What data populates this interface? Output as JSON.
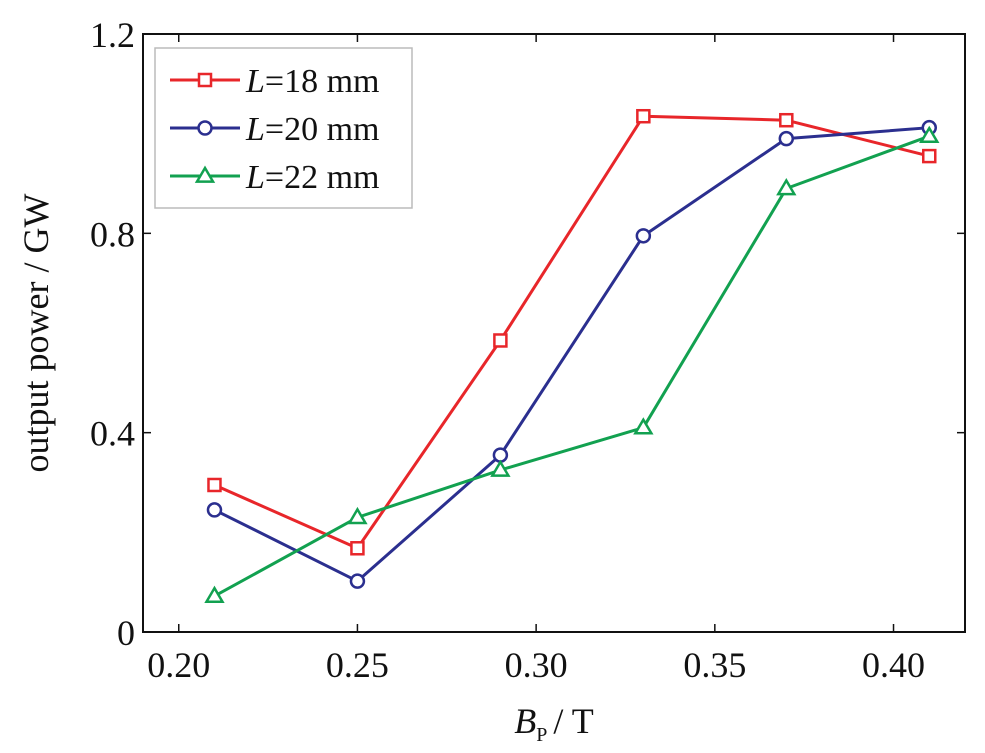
{
  "chart_data": {
    "type": "line",
    "title": "",
    "xlabel": {
      "main": "B",
      "subscript": "P",
      "suffix": "/ T"
    },
    "ylabel": "output power / GW",
    "xlim": [
      0.19,
      0.42
    ],
    "ylim": [
      0,
      1.2
    ],
    "xticks": [
      0.2,
      0.25,
      0.3,
      0.35,
      0.4
    ],
    "xtick_labels": [
      "0.20",
      "0.25",
      "0.30",
      "0.35",
      "0.40"
    ],
    "yticks": [
      0,
      0.4,
      0.8,
      1.2
    ],
    "ytick_labels": [
      "0",
      "0.4",
      "0.8",
      "1.2"
    ],
    "grid": false,
    "legend_position": "top-left",
    "x": [
      0.21,
      0.25,
      0.29,
      0.33,
      0.37,
      0.41
    ],
    "series": [
      {
        "name_var": "L",
        "name_rest": "=18 mm",
        "color": "#e8262a",
        "marker": "square",
        "values": [
          0.295,
          0.168,
          0.585,
          1.035,
          1.027,
          0.955
        ]
      },
      {
        "name_var": "L",
        "name_rest": "=20 mm",
        "color": "#2b2f8f",
        "marker": "circle",
        "values": [
          0.245,
          0.102,
          0.355,
          0.795,
          0.99,
          1.012
        ]
      },
      {
        "name_var": "L",
        "name_rest": "=22 mm",
        "color": "#12a150",
        "marker": "triangle",
        "values": [
          0.072,
          0.23,
          0.325,
          0.41,
          0.89,
          0.995
        ]
      }
    ]
  }
}
